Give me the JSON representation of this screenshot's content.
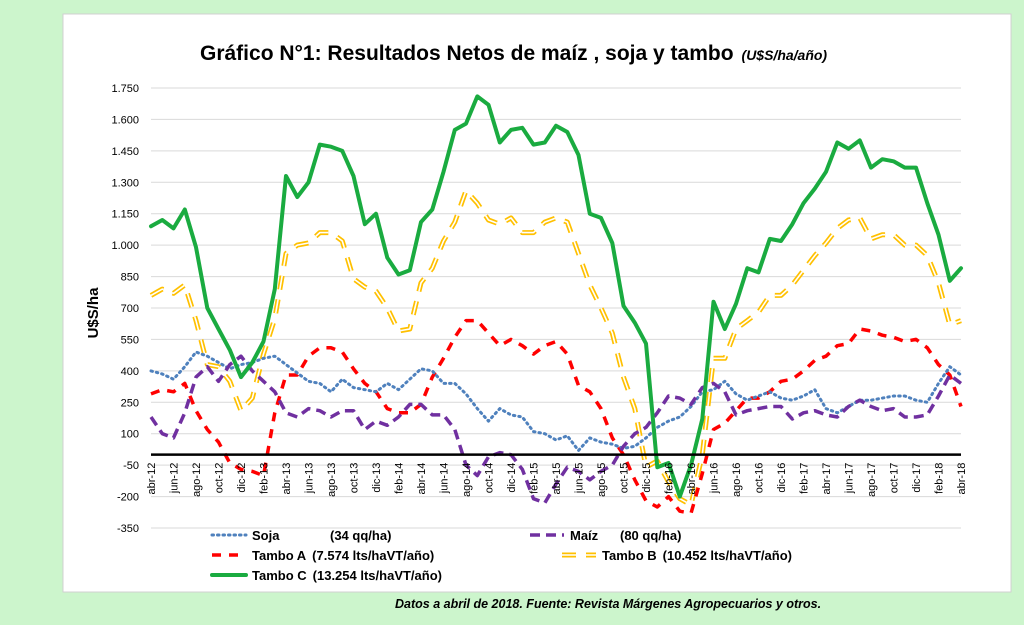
{
  "chart_data": {
    "type": "line",
    "title": "Gráfico N°1: Resultados Netos de maíz , soja y tambo",
    "title_units": "(U$S/ha/año)",
    "ylabel": "U$S/ha",
    "xlabel": "",
    "ylim": [
      -350,
      1750
    ],
    "yticks": [
      -350,
      -200,
      -50,
      100,
      250,
      400,
      550,
      700,
      850,
      1000,
      1150,
      1300,
      1450,
      1600,
      1750
    ],
    "ytick_labels": [
      "-350",
      "-200",
      "-50",
      "100",
      "250",
      "400",
      "550",
      "700",
      "850",
      "1.000",
      "1.150",
      "1.300",
      "1.450",
      "1.600",
      "1.750"
    ],
    "zero_line": 0,
    "grid": true,
    "legend_position": "bottom",
    "x_labels": [
      "abr-12",
      "jun-12",
      "ago-12",
      "oct-12",
      "dic-12",
      "feb-13",
      "abr-13",
      "jun-13",
      "ago-13",
      "oct-13",
      "dic-13",
      "feb-14",
      "abr-14",
      "jun-14",
      "ago-14",
      "oct-14",
      "dic-14",
      "feb-15",
      "abr-15",
      "jun-15",
      "ago-15",
      "oct-15",
      "dic-15",
      "feb-16",
      "abr-16",
      "jun-16",
      "ago-16",
      "oct-16",
      "dic-16",
      "feb-17",
      "abr-17",
      "jun-17",
      "ago-17",
      "oct-17",
      "dic-17",
      "feb-18",
      "abr-18"
    ],
    "x_months": [
      "abr-12",
      "may-12",
      "jun-12",
      "jul-12",
      "ago-12",
      "sep-12",
      "oct-12",
      "nov-12",
      "dic-12",
      "ene-13",
      "feb-13",
      "mar-13",
      "abr-13",
      "may-13",
      "jun-13",
      "jul-13",
      "ago-13",
      "sep-13",
      "oct-13",
      "nov-13",
      "dic-13",
      "ene-14",
      "feb-14",
      "mar-14",
      "abr-14",
      "may-14",
      "jun-14",
      "jul-14",
      "ago-14",
      "sep-14",
      "oct-14",
      "nov-14",
      "dic-14",
      "ene-15",
      "feb-15",
      "mar-15",
      "abr-15",
      "may-15",
      "jun-15",
      "jul-15",
      "ago-15",
      "sep-15",
      "oct-15",
      "nov-15",
      "dic-15",
      "ene-16",
      "feb-16",
      "mar-16",
      "abr-16",
      "may-16",
      "jun-16",
      "jul-16",
      "ago-16",
      "sep-16",
      "oct-16",
      "nov-16",
      "dic-16",
      "ene-17",
      "feb-17",
      "mar-17",
      "abr-17",
      "may-17",
      "jun-17",
      "jul-17",
      "ago-17",
      "sep-17",
      "oct-17",
      "nov-17",
      "dic-17",
      "ene-18",
      "feb-18",
      "mar-18",
      "abr-18"
    ],
    "series": [
      {
        "name": "Soja",
        "legend_detail": "(34 qq/ha)",
        "color": "#4f81bd",
        "style": "dotted",
        "values": [
          400,
          385,
          360,
          420,
          490,
          470,
          440,
          410,
          430,
          440,
          460,
          470,
          430,
          390,
          350,
          340,
          300,
          360,
          320,
          310,
          300,
          340,
          310,
          360,
          410,
          400,
          340,
          340,
          290,
          220,
          160,
          220,
          190,
          180,
          110,
          100,
          70,
          90,
          20,
          80,
          60,
          50,
          30,
          40,
          80,
          130,
          160,
          180,
          230,
          300,
          310,
          350,
          290,
          260,
          280,
          300,
          270,
          260,
          280,
          310,
          220,
          200,
          230,
          260,
          260,
          270,
          280,
          280,
          260,
          250,
          340,
          420,
          380
        ]
      },
      {
        "name": "Maíz",
        "legend_detail": "(80 qq/ha)",
        "color": "#7030a0",
        "style": "dashed",
        "values": [
          180,
          100,
          80,
          200,
          370,
          420,
          350,
          430,
          470,
          400,
          350,
          300,
          200,
          180,
          220,
          210,
          180,
          210,
          210,
          120,
          160,
          140,
          180,
          240,
          240,
          190,
          190,
          120,
          -50,
          -100,
          -10,
          10,
          0,
          -70,
          -210,
          -230,
          -140,
          -60,
          -80,
          -120,
          -80,
          -50,
          40,
          100,
          130,
          200,
          280,
          270,
          240,
          320,
          340,
          300,
          190,
          210,
          220,
          230,
          230,
          170,
          200,
          210,
          190,
          180,
          230,
          260,
          230,
          210,
          220,
          180,
          180,
          190,
          280,
          380,
          340
        ]
      },
      {
        "name": "Tambo  A",
        "legend_detail": "(7.574 lts/haVT/año)",
        "color": "#ff0000",
        "style": "dashed",
        "values": [
          290,
          310,
          300,
          340,
          210,
          120,
          60,
          -40,
          -70,
          -80,
          -100,
          200,
          380,
          380,
          470,
          510,
          510,
          490,
          410,
          340,
          300,
          220,
          200,
          200,
          240,
          370,
          460,
          560,
          640,
          640,
          580,
          520,
          550,
          520,
          480,
          520,
          540,
          480,
          330,
          300,
          220,
          80,
          0,
          -120,
          -220,
          -250,
          -200,
          -270,
          -280,
          -90,
          120,
          150,
          210,
          270,
          270,
          300,
          350,
          360,
          400,
          450,
          470,
          520,
          530,
          600,
          590,
          570,
          560,
          540,
          550,
          510,
          430,
          380,
          230
        ]
      },
      {
        "name": "Tambo B",
        "legend_detail": "(10.452 lts/haVT/año)",
        "color": "#ffc000",
        "style": "double",
        "values": [
          760,
          790,
          770,
          810,
          640,
          430,
          420,
          350,
          210,
          270,
          480,
          650,
          960,
          1000,
          1010,
          1060,
          1060,
          1020,
          840,
          800,
          780,
          700,
          590,
          600,
          820,
          890,
          1020,
          1110,
          1260,
          1200,
          1120,
          1100,
          1130,
          1060,
          1060,
          1110,
          1130,
          1110,
          960,
          810,
          700,
          580,
          370,
          220,
          -60,
          -30,
          -130,
          -210,
          -240,
          0,
          460,
          460,
          600,
          640,
          680,
          760,
          760,
          810,
          880,
          950,
          1010,
          1080,
          1120,
          1130,
          1030,
          1050,
          1050,
          1000,
          1000,
          950,
          820,
          620,
          640
        ]
      },
      {
        "name": "Tambo C",
        "legend_detail": "(13.254 lts/haVT/año)",
        "color": "#1aab40",
        "style": "solid",
        "values": [
          1090,
          1120,
          1080,
          1170,
          990,
          700,
          600,
          500,
          370,
          440,
          540,
          790,
          1330,
          1230,
          1300,
          1480,
          1470,
          1450,
          1330,
          1100,
          1150,
          940,
          860,
          880,
          1110,
          1170,
          1350,
          1550,
          1580,
          1710,
          1670,
          1490,
          1550,
          1560,
          1480,
          1490,
          1570,
          1540,
          1430,
          1150,
          1130,
          1010,
          710,
          630,
          530,
          -60,
          -40,
          -200,
          -50,
          170,
          730,
          600,
          720,
          890,
          870,
          1030,
          1020,
          1100,
          1200,
          1270,
          1350,
          1490,
          1460,
          1500,
          1370,
          1410,
          1400,
          1370,
          1370,
          1200,
          1050,
          830,
          890
        ]
      }
    ]
  },
  "caption": "Datos a abril de 2018. Fuente: Revista Márgenes Agropecuarios y otros."
}
